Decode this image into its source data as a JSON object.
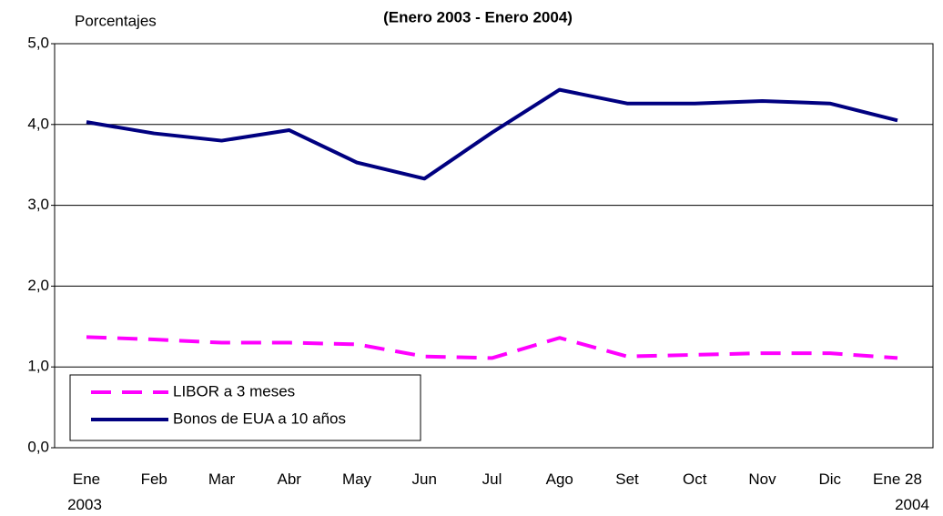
{
  "chart_data": {
    "type": "line",
    "title": "(Enero 2003 - Enero 2004)",
    "y_label": "Porcentajes",
    "categories": [
      "Ene\n2003",
      "Feb",
      "Mar",
      "Abr",
      "May",
      "Jun",
      "Jul",
      "Ago",
      "Set",
      "Oct",
      "Nov",
      "Dic",
      "Ene 28\n2004"
    ],
    "series": [
      {
        "name": "LIBOR a 3  meses",
        "color": "#ff00ff",
        "dashed": true,
        "values": [
          1.37,
          1.34,
          1.3,
          1.3,
          1.28,
          1.13,
          1.11,
          1.36,
          1.13,
          1.15,
          1.17,
          1.17,
          1.11
        ]
      },
      {
        "name": "Bonos de EUA a 10 años",
        "color": "#000080",
        "dashed": false,
        "values": [
          4.03,
          3.89,
          3.8,
          3.93,
          3.53,
          3.33,
          3.9,
          4.43,
          4.26,
          4.26,
          4.29,
          4.26,
          4.05
        ]
      }
    ],
    "ylim": [
      0,
      5
    ],
    "yticks": [
      {
        "value": 0,
        "label": "0,0"
      },
      {
        "value": 1,
        "label": "1,0"
      },
      {
        "value": 2,
        "label": "2,0"
      },
      {
        "value": 3,
        "label": "3,0"
      },
      {
        "value": 4,
        "label": "4,0"
      },
      {
        "value": 5,
        "label": "5,0"
      }
    ],
    "grid": true,
    "legend": "lower left"
  }
}
